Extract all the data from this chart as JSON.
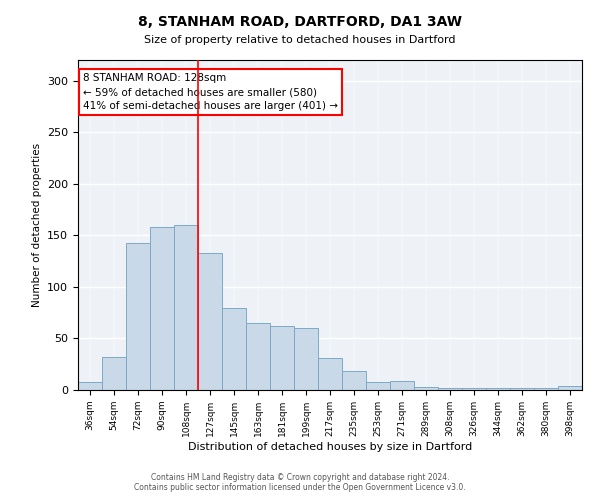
{
  "title": "8, STANHAM ROAD, DARTFORD, DA1 3AW",
  "subtitle": "Size of property relative to detached houses in Dartford",
  "xlabel": "Distribution of detached houses by size in Dartford",
  "ylabel": "Number of detached properties",
  "bar_labels": [
    "36sqm",
    "54sqm",
    "72sqm",
    "90sqm",
    "108sqm",
    "127sqm",
    "145sqm",
    "163sqm",
    "181sqm",
    "199sqm",
    "217sqm",
    "235sqm",
    "253sqm",
    "271sqm",
    "289sqm",
    "308sqm",
    "326sqm",
    "344sqm",
    "362sqm",
    "380sqm",
    "398sqm"
  ],
  "bar_values": [
    8,
    32,
    143,
    158,
    160,
    133,
    80,
    65,
    62,
    60,
    31,
    18,
    8,
    9,
    3,
    2,
    2,
    2,
    2,
    2,
    4
  ],
  "bar_color": "#c9d9e8",
  "bar_edge_color": "#7aaac8",
  "vline_index": 5,
  "vline_color": "red",
  "annotation_text": "8 STANHAM ROAD: 128sqm\n← 59% of detached houses are smaller (580)\n41% of semi-detached houses are larger (401) →",
  "annotation_box_color": "white",
  "annotation_box_edge": "red",
  "ylim": [
    0,
    320
  ],
  "yticks": [
    0,
    50,
    100,
    150,
    200,
    250,
    300
  ],
  "footer_line1": "Contains HM Land Registry data © Crown copyright and database right 2024.",
  "footer_line2": "Contains public sector information licensed under the Open Government Licence v3.0.",
  "background_color": "#eef2f7"
}
